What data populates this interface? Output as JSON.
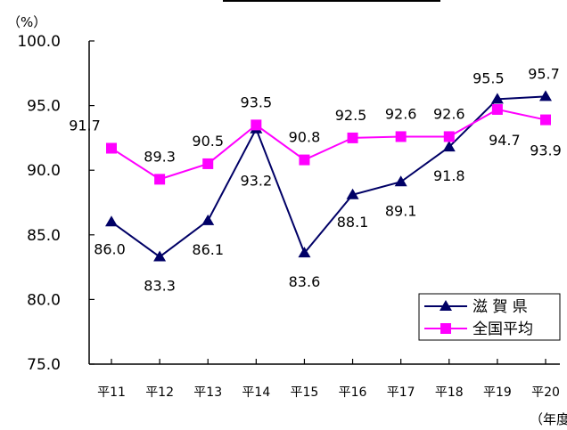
{
  "chart_data": {
    "type": "line",
    "title": "",
    "y_unit": "（%）",
    "x_unit": "（年度）",
    "ylim": [
      75.0,
      100.0
    ],
    "y_ticks": [
      "100.0",
      "95.0",
      "90.0",
      "85.0",
      "80.0",
      "75.0"
    ],
    "y_tick_values": [
      100,
      95,
      90,
      85,
      80,
      75
    ],
    "categories": [
      "平11",
      "平12",
      "平13",
      "平14",
      "平15",
      "平16",
      "平17",
      "平18",
      "平19",
      "平20"
    ],
    "grid": false,
    "legend_position": "bottom-right",
    "series": [
      {
        "name": "滋 賀 県",
        "color": "#000066",
        "marker": "triangle",
        "values": [
          86.0,
          83.3,
          86.1,
          93.2,
          83.6,
          88.1,
          89.1,
          91.8,
          95.5,
          95.7
        ],
        "labels": [
          "86.0",
          "83.3",
          "86.1",
          "93.2",
          "83.6",
          "88.1",
          "89.1",
          "91.8",
          "95.5",
          "95.7"
        ]
      },
      {
        "name": "全国平均",
        "color": "#ff00ff",
        "marker": "square",
        "values": [
          91.7,
          89.3,
          90.5,
          93.5,
          90.8,
          92.5,
          92.6,
          92.6,
          94.7,
          93.9
        ],
        "labels": [
          "91.7",
          "89.3",
          "90.5",
          "93.5",
          "90.8",
          "92.5",
          "92.6",
          "92.6",
          "94.7",
          "93.9"
        ]
      }
    ]
  }
}
